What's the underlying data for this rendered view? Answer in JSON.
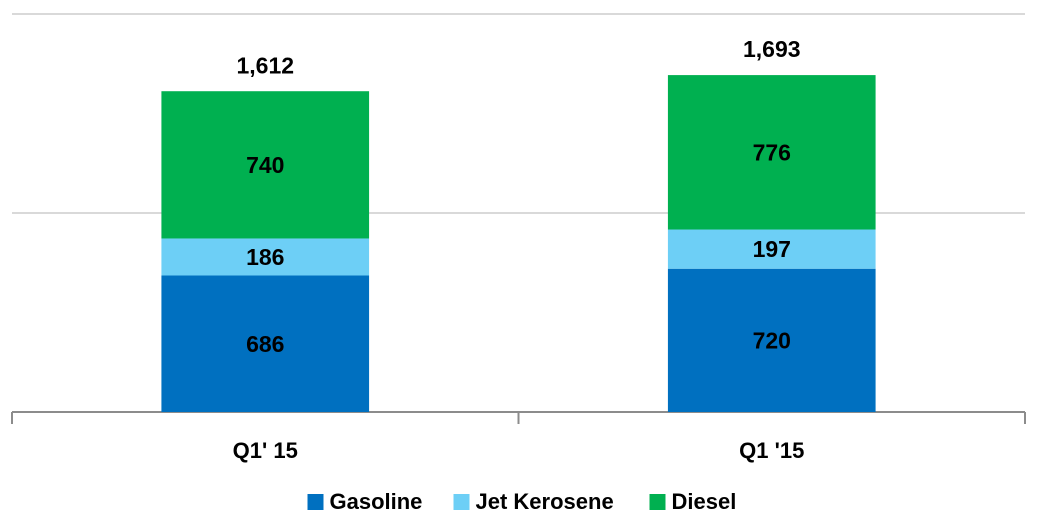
{
  "chart_data": {
    "type": "stacked_bar",
    "categories": [
      "Q1' 15",
      "Q1 '15"
    ],
    "series": [
      {
        "name": "Gasoline",
        "color": "#0070c0",
        "values": [
          686,
          720
        ]
      },
      {
        "name": "Jet Kerosene",
        "color": "#6dcff6",
        "values": [
          186,
          197
        ]
      },
      {
        "name": "Diesel",
        "color": "#00b050",
        "values": [
          740,
          776
        ]
      }
    ],
    "totals": [
      1612,
      1693
    ],
    "total_labels": [
      "1,612",
      "1,693"
    ],
    "ylim": [
      0,
      2000
    ],
    "yticks": [
      0,
      1000,
      2000
    ],
    "grid": true
  }
}
